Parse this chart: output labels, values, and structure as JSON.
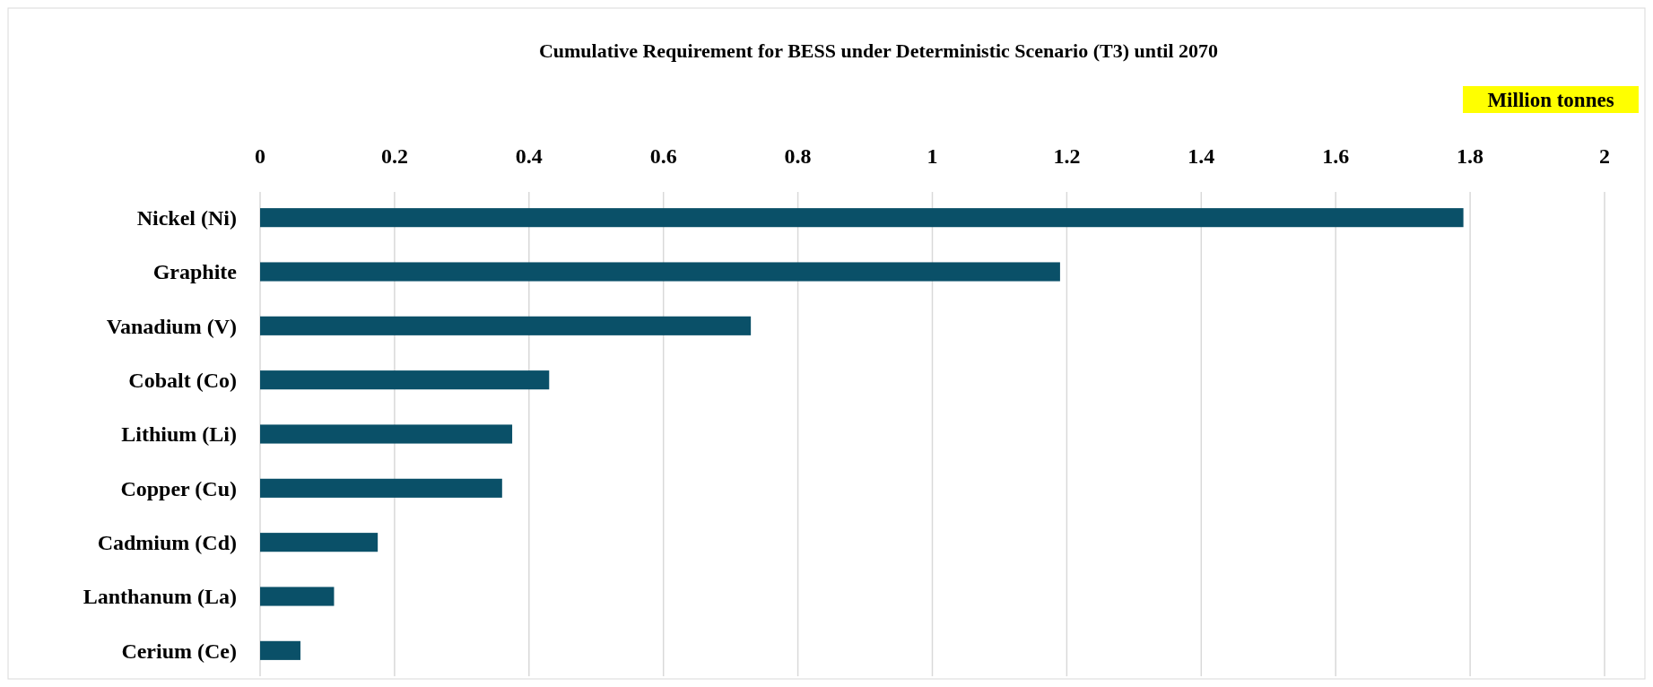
{
  "chart_data": {
    "type": "bar",
    "orientation": "horizontal",
    "title": "Cumulative Requirement for BESS under Deterministic Scenario (T3) until 2070",
    "xlabel": "Million tonnes",
    "categories": [
      "Nickel (Ni)",
      "Graphite",
      "Vanadium (V)",
      "Cobalt (Co)",
      "Lithium (Li)",
      "Copper (Cu)",
      "Cadmium (Cd)",
      "Lanthanum (La)",
      "Cerium (Ce)"
    ],
    "values": [
      1.79,
      1.19,
      0.73,
      0.43,
      0.375,
      0.36,
      0.175,
      0.11,
      0.06
    ],
    "color": "#0a5068",
    "xlim": [
      0,
      2
    ],
    "xticks": [
      0,
      0.2,
      0.4,
      0.6,
      0.8,
      1,
      1.2,
      1.4,
      1.6,
      1.8,
      2
    ],
    "grid": "x"
  }
}
